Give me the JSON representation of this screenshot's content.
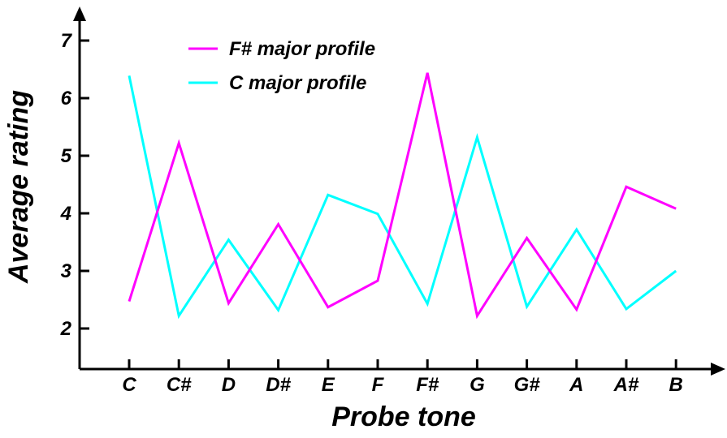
{
  "chart_data": {
    "type": "line",
    "title": "",
    "xlabel": "Probe tone",
    "ylabel": "Average rating",
    "categories": [
      "C",
      "C#",
      "D",
      "D#",
      "E",
      "F",
      "F#",
      "G",
      "G#",
      "A",
      "A#",
      "B"
    ],
    "yticks": [
      "2",
      "3",
      "4",
      "5",
      "6",
      "7"
    ],
    "ylim": [
      1.2,
      7.3
    ],
    "grid": false,
    "legend_position": "top-left",
    "series": [
      {
        "name": "F# major profile",
        "color": "#ff00ff",
        "values": [
          2.47,
          5.22,
          2.44,
          3.81,
          2.37,
          2.83,
          6.44,
          2.22,
          3.57,
          2.33,
          4.46,
          4.08
        ]
      },
      {
        "name": "C major profile",
        "color": "#00ffff",
        "values": [
          6.39,
          2.22,
          3.54,
          2.32,
          4.32,
          3.99,
          2.43,
          5.32,
          2.38,
          3.72,
          2.34,
          3.0
        ]
      }
    ]
  }
}
